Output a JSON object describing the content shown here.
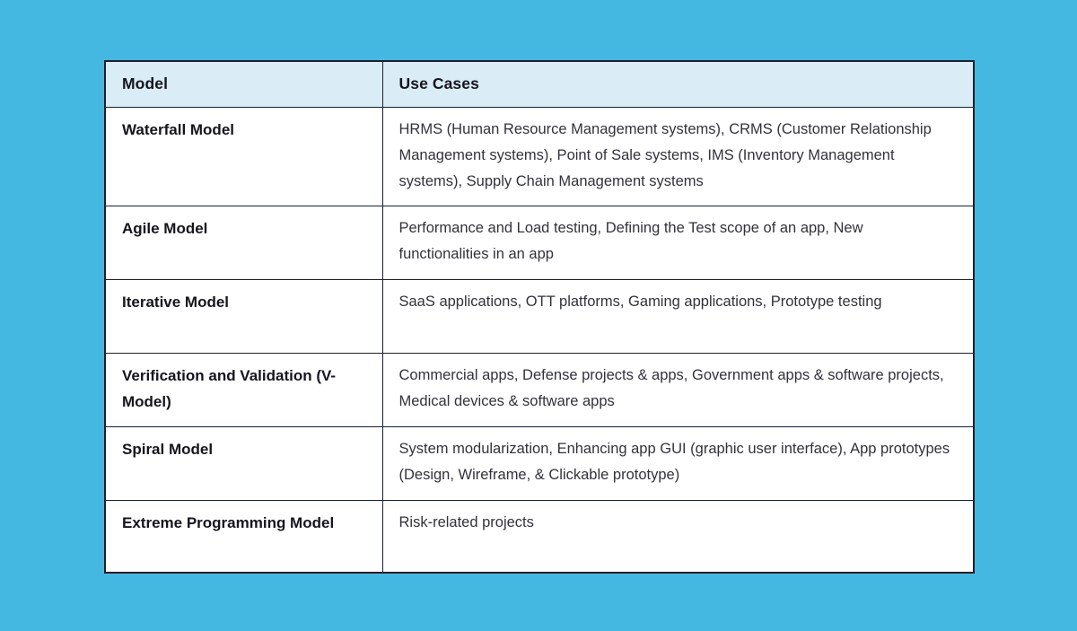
{
  "table": {
    "headers": {
      "model": "Model",
      "use_cases": "Use Cases"
    },
    "rows": [
      {
        "model": "Waterfall Model",
        "use_cases": "HRMS (Human Resource Management systems), CRMS (Customer Relationship Management systems), Point of Sale systems, IMS (Inventory Management systems), Supply Chain Management systems"
      },
      {
        "model": "Agile Model",
        "use_cases": "Performance and Load testing, Defining the Test scope of an app, New functionalities in an app"
      },
      {
        "model": "Iterative Model",
        "use_cases": "SaaS applications, OTT platforms, Gaming applications, Prototype testing"
      },
      {
        "model": "Verification and Validation (V-Model)",
        "use_cases": "Commercial apps, Defense projects & apps, Government apps & software projects, Medical devices & software apps"
      },
      {
        "model": "Spiral Model",
        "use_cases": "System modularization, Enhancing app GUI (graphic user interface), App prototypes (Design, Wireframe, & Clickable prototype)"
      },
      {
        "model": "Extreme Programming Model",
        "use_cases": "Risk-related projects"
      }
    ],
    "colors": {
      "page_background": "#45b8e1",
      "header_background": "#daecf6",
      "border": "#1a2230",
      "cell_background": "#ffffff",
      "heading_text": "#15151d",
      "body_text": "#32323b"
    }
  }
}
